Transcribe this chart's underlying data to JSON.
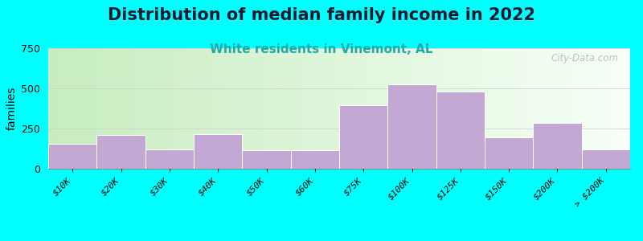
{
  "title": "Distribution of median family income in 2022",
  "subtitle": "White residents in Vinemont, AL",
  "ylabel": "families",
  "background_outer": "#00FFFF",
  "bar_color": "#C4A8D4",
  "bar_edge_color": "#FFFFFF",
  "categories": [
    "$10K",
    "$20K",
    "$30K",
    "$40K",
    "$50K",
    "$60K",
    "$75K",
    "$100K",
    "$125K",
    "$150K",
    "$200K",
    "> $200K"
  ],
  "values": [
    155,
    210,
    120,
    215,
    115,
    115,
    395,
    525,
    480,
    195,
    285,
    120
  ],
  "ylim": [
    0,
    750
  ],
  "yticks": [
    0,
    250,
    500,
    750
  ],
  "title_fontsize": 15,
  "subtitle_fontsize": 11,
  "subtitle_color": "#1AACAA",
  "ylabel_fontsize": 10,
  "watermark": "City-Data.com",
  "bg_left_color": "#c8e8c0",
  "bg_right_color": "#f0f8f0",
  "bg_top_color": "#ffffff"
}
